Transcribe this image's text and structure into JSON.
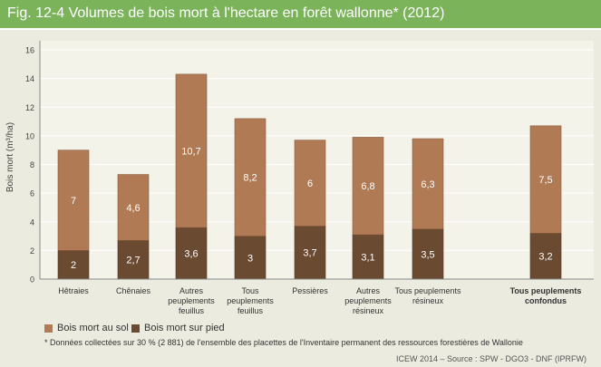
{
  "title": "Fig. 12-4 Volumes de bois mort à l'hectare en forêt wallonne* (2012)",
  "chart_data": {
    "type": "bar",
    "stacked": true,
    "ylabel": "Bois mort (m³/ha)",
    "ylim": [
      0,
      16
    ],
    "yticks": [
      0,
      2,
      4,
      6,
      8,
      10,
      12,
      14,
      16
    ],
    "grid": true,
    "categories": [
      [
        "Hêtraies"
      ],
      [
        "Chênaies"
      ],
      [
        "Autres",
        "peuplements",
        "feuillus"
      ],
      [
        "Tous",
        "peuplements",
        "feuillus"
      ],
      [
        "Pessières"
      ],
      [
        "Autres",
        "peuplements",
        "résineux"
      ],
      [
        "Tous peuplements",
        "résineux"
      ],
      [
        "Tous peuplements",
        "confondus"
      ]
    ],
    "series": [
      {
        "name": "Bois mort sur pied",
        "color": "#6b4a32",
        "values": [
          2,
          2.7,
          3.6,
          3,
          3.7,
          3.1,
          3.5,
          3.2
        ],
        "labels": [
          "2",
          "2,7",
          "3,6",
          "3",
          "3,7",
          "3,1",
          "3,5",
          "3,2"
        ]
      },
      {
        "name": "Bois mort au sol",
        "color": "#b07a55",
        "values": [
          7,
          4.6,
          10.7,
          8.2,
          6,
          6.8,
          6.3,
          7.5
        ],
        "labels": [
          "7",
          "4,6",
          "10,7",
          "8,2",
          "6",
          "6,8",
          "6,3",
          "7,5"
        ]
      }
    ],
    "legend": [
      {
        "label": "Bois mort au sol",
        "color": "#b07a55"
      },
      {
        "label": "Bois mort sur pied",
        "color": "#6b4a32"
      }
    ],
    "legend_position": "bottom-left"
  },
  "footnote": "* Données collectées sur 30 % (2 881) de l'ensemble des placettes de l'Inventaire permanent des ressources forestières de Wallonie",
  "source": "ICEW 2014 – Source : SPW - DGO3 - DNF (IPRFW)"
}
